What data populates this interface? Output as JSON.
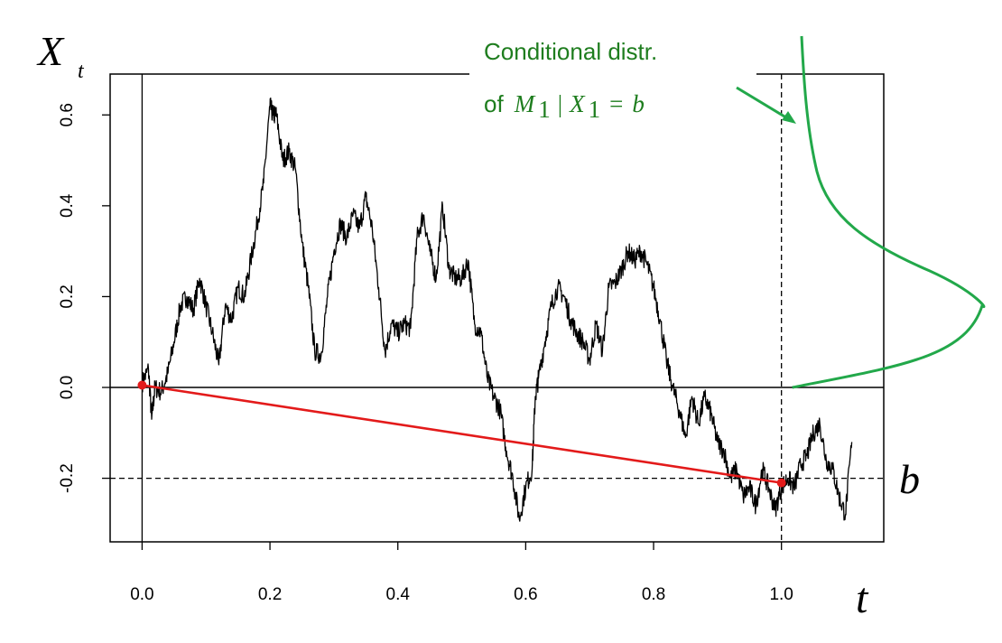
{
  "chart_data": {
    "type": "line",
    "axis_labels": {
      "y_symbol": "X",
      "y_subscript": "t",
      "x_symbol": "t"
    },
    "xlim": [
      -0.05,
      1.16
    ],
    "ylim": [
      -0.34,
      0.69
    ],
    "x_ticks": [
      0.0,
      0.2,
      0.4,
      0.6,
      0.8,
      1.0
    ],
    "x_tick_labels": [
      "0.0",
      "0.2",
      "0.4",
      "0.6",
      "0.8",
      "1.0"
    ],
    "y_ticks": [
      -0.2,
      0.0,
      0.2,
      0.4,
      0.6
    ],
    "y_tick_labels": [
      "-0.2",
      "0.0",
      "0.2",
      "0.4",
      "0.6"
    ],
    "reference_lines": {
      "horizontal_solid_y": 0.0,
      "horizontal_dashed_y": -0.2,
      "vertical_solid_x": 0.0,
      "vertical_dashed_x": 1.0
    },
    "b_label": "b",
    "brownian_path": {
      "color": "#000000",
      "seed": 7,
      "amplitude": 0.022,
      "keypoints": [
        [
          0.0,
          0.01
        ],
        [
          0.01,
          0.04
        ],
        [
          0.015,
          -0.07
        ],
        [
          0.02,
          0.0
        ],
        [
          0.03,
          -0.01
        ],
        [
          0.04,
          0.03
        ],
        [
          0.05,
          0.1
        ],
        [
          0.06,
          0.18
        ],
        [
          0.07,
          0.2
        ],
        [
          0.08,
          0.17
        ],
        [
          0.09,
          0.24
        ],
        [
          0.1,
          0.18
        ],
        [
          0.11,
          0.12
        ],
        [
          0.12,
          0.05
        ],
        [
          0.13,
          0.18
        ],
        [
          0.14,
          0.15
        ],
        [
          0.15,
          0.22
        ],
        [
          0.16,
          0.2
        ],
        [
          0.17,
          0.28
        ],
        [
          0.18,
          0.36
        ],
        [
          0.19,
          0.45
        ],
        [
          0.2,
          0.62
        ],
        [
          0.205,
          0.6
        ],
        [
          0.21,
          0.6
        ],
        [
          0.22,
          0.5
        ],
        [
          0.23,
          0.52
        ],
        [
          0.24,
          0.48
        ],
        [
          0.25,
          0.32
        ],
        [
          0.26,
          0.22
        ],
        [
          0.27,
          0.08
        ],
        [
          0.28,
          0.07
        ],
        [
          0.29,
          0.2
        ],
        [
          0.3,
          0.3
        ],
        [
          0.31,
          0.36
        ],
        [
          0.32,
          0.33
        ],
        [
          0.33,
          0.38
        ],
        [
          0.34,
          0.35
        ],
        [
          0.35,
          0.42
        ],
        [
          0.36,
          0.35
        ],
        [
          0.37,
          0.22
        ],
        [
          0.38,
          0.08
        ],
        [
          0.39,
          0.14
        ],
        [
          0.4,
          0.12
        ],
        [
          0.41,
          0.14
        ],
        [
          0.42,
          0.13
        ],
        [
          0.43,
          0.33
        ],
        [
          0.44,
          0.38
        ],
        [
          0.45,
          0.3
        ],
        [
          0.46,
          0.24
        ],
        [
          0.47,
          0.4
        ],
        [
          0.48,
          0.26
        ],
        [
          0.49,
          0.24
        ],
        [
          0.5,
          0.24
        ],
        [
          0.51,
          0.28
        ],
        [
          0.52,
          0.14
        ],
        [
          0.53,
          0.12
        ],
        [
          0.54,
          0.02
        ],
        [
          0.55,
          -0.02
        ],
        [
          0.56,
          -0.05
        ],
        [
          0.57,
          -0.14
        ],
        [
          0.58,
          -0.2
        ],
        [
          0.59,
          -0.29
        ],
        [
          0.6,
          -0.22
        ],
        [
          0.61,
          -0.18
        ],
        [
          0.615,
          -0.02
        ],
        [
          0.62,
          0.02
        ],
        [
          0.63,
          0.1
        ],
        [
          0.64,
          0.18
        ],
        [
          0.65,
          0.22
        ],
        [
          0.66,
          0.2
        ],
        [
          0.67,
          0.15
        ],
        [
          0.68,
          0.12
        ],
        [
          0.69,
          0.1
        ],
        [
          0.7,
          0.06
        ],
        [
          0.71,
          0.14
        ],
        [
          0.72,
          0.08
        ],
        [
          0.73,
          0.22
        ],
        [
          0.74,
          0.23
        ],
        [
          0.75,
          0.26
        ],
        [
          0.76,
          0.3
        ],
        [
          0.77,
          0.28
        ],
        [
          0.78,
          0.3
        ],
        [
          0.79,
          0.27
        ],
        [
          0.8,
          0.22
        ],
        [
          0.81,
          0.15
        ],
        [
          0.82,
          0.06
        ],
        [
          0.83,
          0.0
        ],
        [
          0.84,
          -0.05
        ],
        [
          0.85,
          -0.11
        ],
        [
          0.86,
          -0.02
        ],
        [
          0.87,
          -0.08
        ],
        [
          0.88,
          -0.02
        ],
        [
          0.89,
          -0.06
        ],
        [
          0.9,
          -0.12
        ],
        [
          0.91,
          -0.14
        ],
        [
          0.92,
          -0.2
        ],
        [
          0.93,
          -0.18
        ],
        [
          0.94,
          -0.24
        ],
        [
          0.95,
          -0.22
        ],
        [
          0.96,
          -0.26
        ],
        [
          0.97,
          -0.18
        ],
        [
          0.98,
          -0.22
        ],
        [
          0.99,
          -0.27
        ],
        [
          1.0,
          -0.22
        ],
        [
          1.01,
          -0.2
        ],
        [
          1.02,
          -0.22
        ],
        [
          1.03,
          -0.17
        ],
        [
          1.04,
          -0.15
        ],
        [
          1.05,
          -0.1
        ],
        [
          1.06,
          -0.08
        ],
        [
          1.07,
          -0.16
        ],
        [
          1.08,
          -0.18
        ],
        [
          1.09,
          -0.24
        ],
        [
          1.1,
          -0.28
        ],
        [
          1.11,
          -0.12
        ]
      ]
    },
    "red_segment": {
      "color": "#e31a1a",
      "start": [
        0.0,
        0.005
      ],
      "end": [
        1.0,
        -0.21
      ]
    },
    "annotation": {
      "color": "#1e7d1e",
      "line1": "Conditional distr.",
      "line2_prefix": "of",
      "math_M": "M",
      "math_sub1": "1",
      "math_bar": "|",
      "math_X": "X",
      "math_sub2": "1",
      "math_eq": "=",
      "math_b": "b"
    },
    "density_curve": {
      "color": "#22a84a",
      "center": 0.2,
      "note": ""
    }
  }
}
